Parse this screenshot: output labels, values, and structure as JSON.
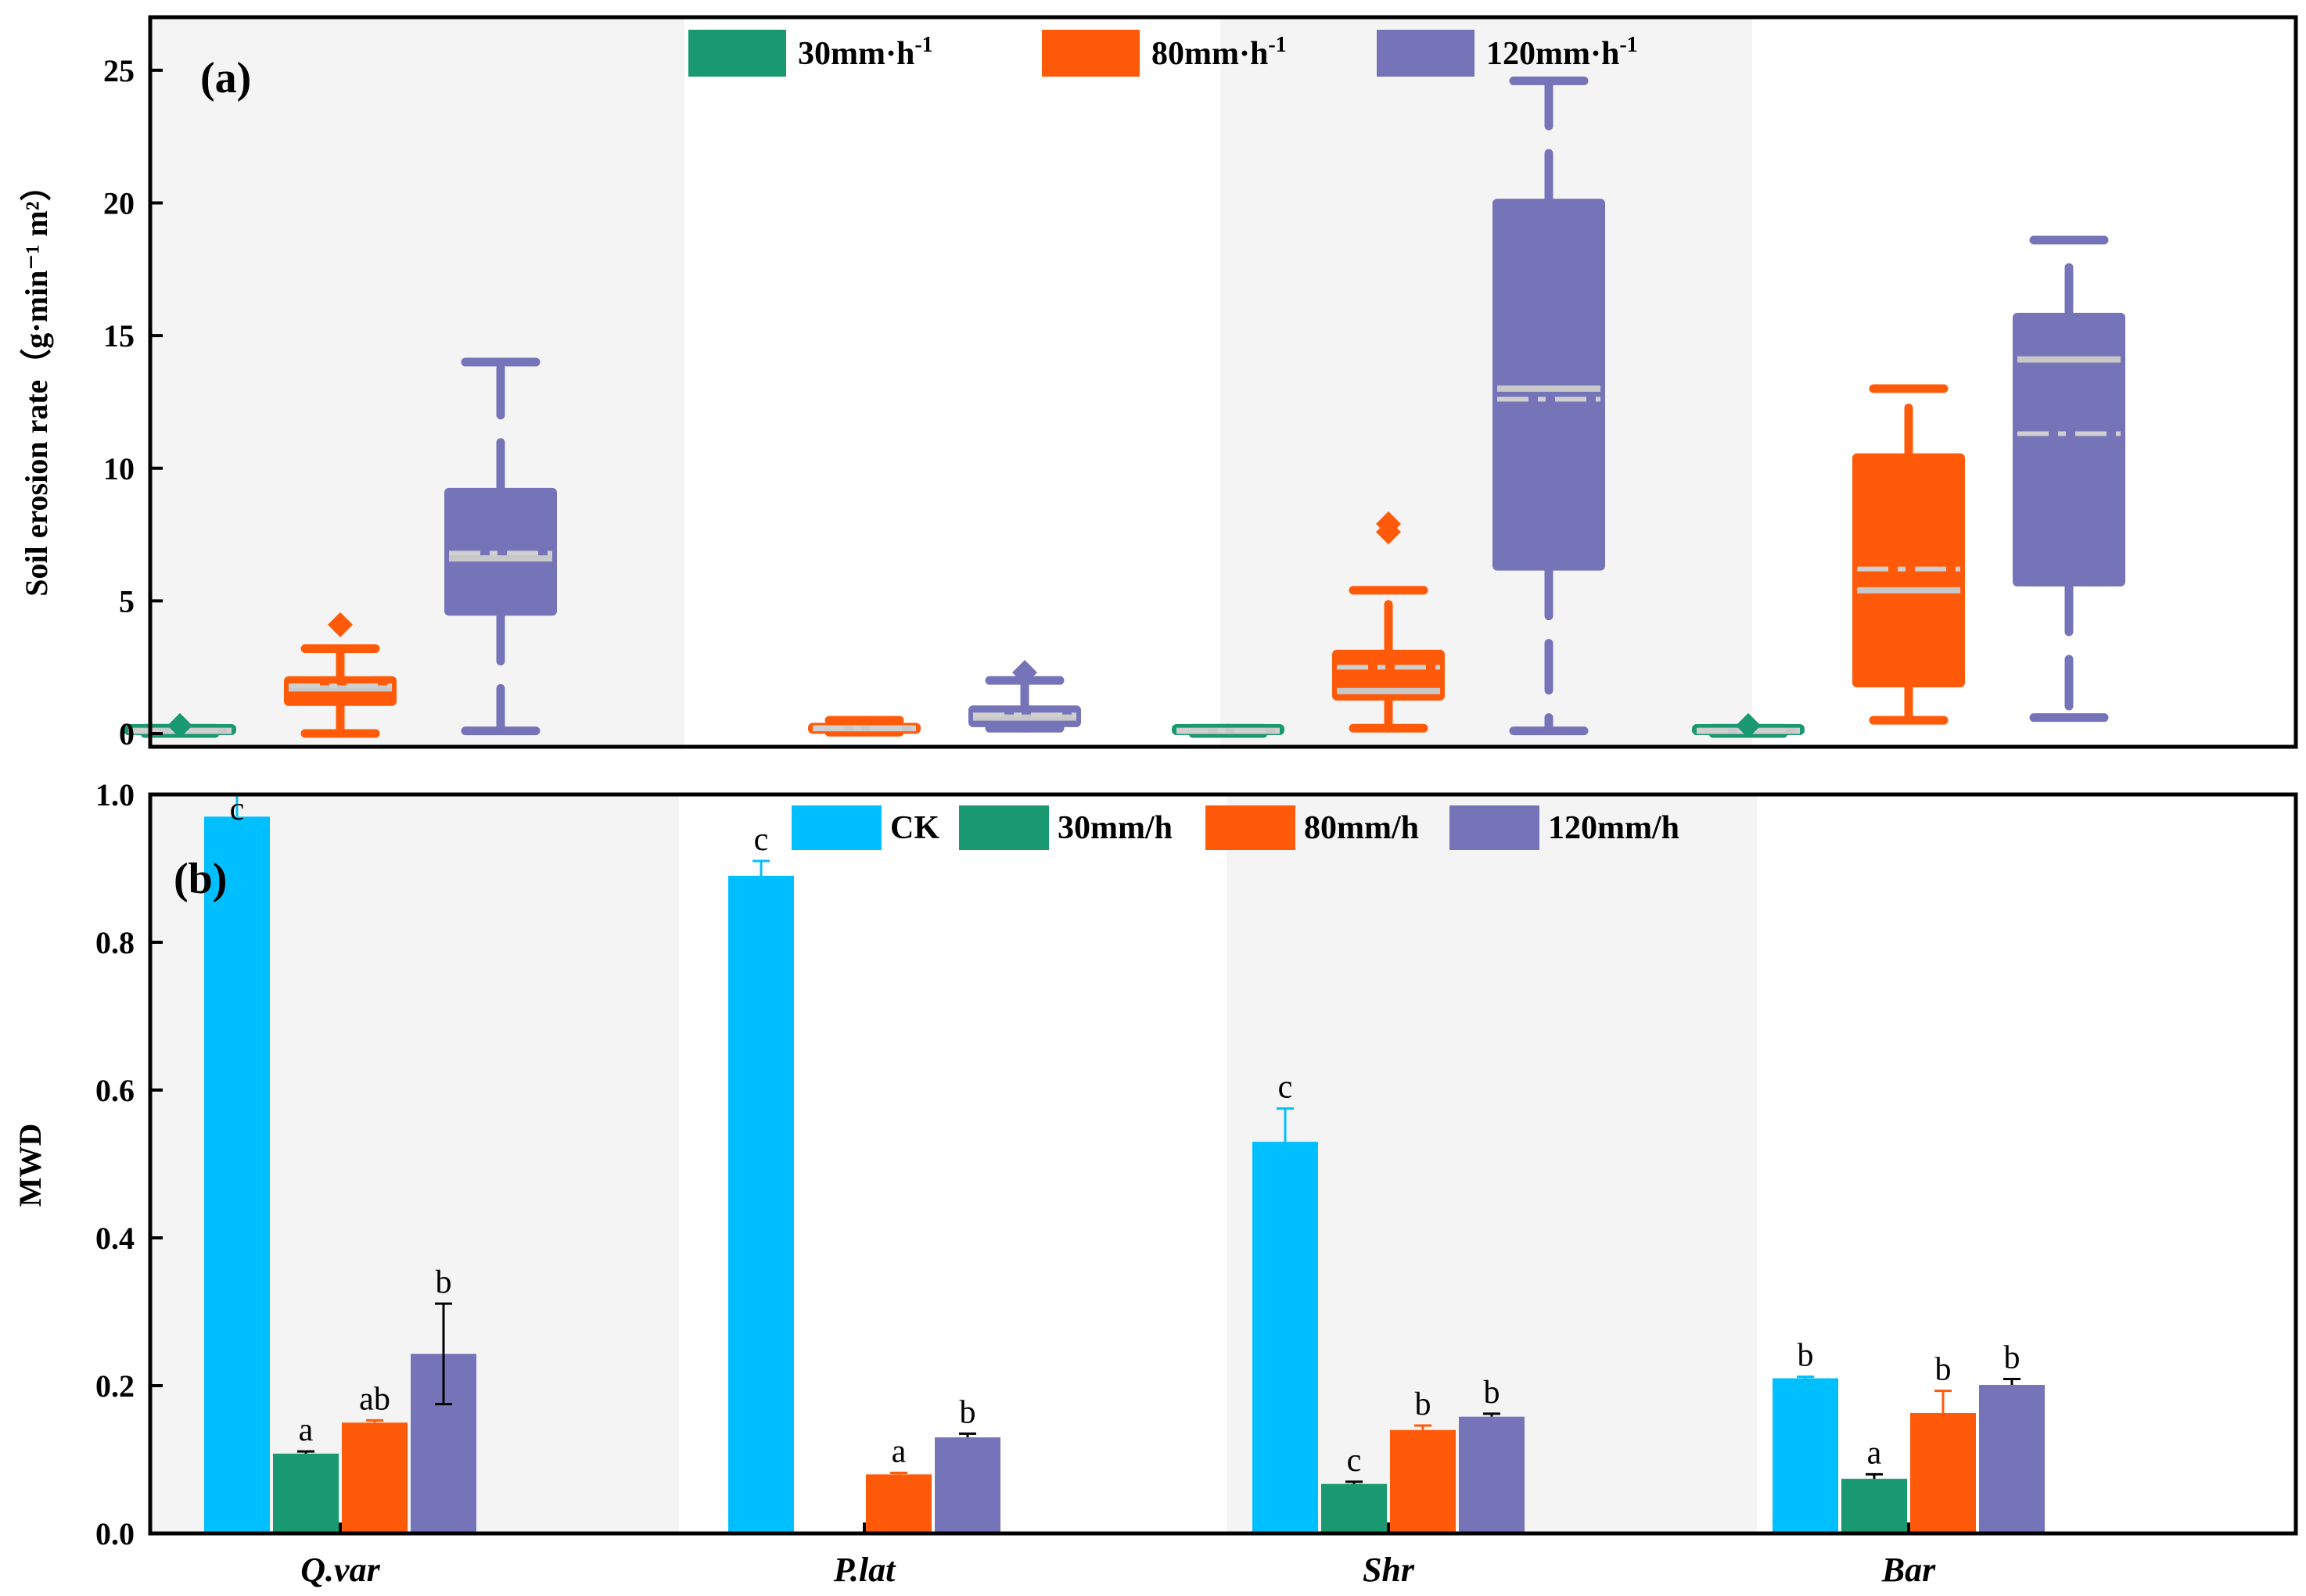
{
  "chart_data": [
    {
      "type": "box",
      "panel_label": "(a)",
      "ylabel": "Soil erosion rate（g·min⁻¹ m²）",
      "ylim": [
        -0.5,
        27
      ],
      "yticks": [
        0,
        5,
        10,
        15,
        20,
        25
      ],
      "categories": [
        "Q.var",
        "P.lat",
        "Shr",
        "Bar"
      ],
      "legend": [
        {
          "label": "30mm·h⁻¹",
          "color": "#1a9970"
        },
        {
          "label": "80mm·h⁻¹",
          "color": "#ff5a0a"
        },
        {
          "label": "120mm·h⁻¹",
          "color": "#7674b8"
        }
      ],
      "series": [
        {
          "name": "30mm·h⁻¹",
          "boxes": [
            {
              "category": "Q.var",
              "min": 0.0,
              "q1": 0.0,
              "median": 0.1,
              "mean": 0.1,
              "q3": 0.2,
              "max": 0.2,
              "outliers": [
                0.3
              ]
            },
            null,
            {
              "category": "Shr",
              "min": 0.0,
              "q1": 0.0,
              "median": 0.1,
              "mean": 0.1,
              "q3": 0.15,
              "max": 0.2,
              "outliers": []
            },
            {
              "category": "Bar",
              "min": 0.0,
              "q1": 0.0,
              "median": 0.1,
              "mean": 0.1,
              "q3": 0.15,
              "max": 0.2,
              "outliers": [
                0.3
              ]
            }
          ]
        },
        {
          "name": "80mm·h⁻¹",
          "boxes": [
            {
              "category": "Q.var",
              "min": 0.0,
              "q1": 1.1,
              "median": 1.7,
              "mean": 1.8,
              "q3": 2.1,
              "max": 3.2,
              "outliers": [
                4.1
              ]
            },
            {
              "category": "P.lat",
              "min": 0.05,
              "q1": 0.05,
              "median": 0.2,
              "mean": 0.2,
              "q3": 0.3,
              "max": 0.5,
              "outliers": []
            },
            {
              "category": "Shr",
              "min": 0.2,
              "q1": 1.3,
              "median": 1.6,
              "mean": 2.5,
              "q3": 3.1,
              "max": 5.4,
              "outliers": [
                7.6,
                7.9
              ]
            },
            {
              "category": "Bar",
              "min": 0.5,
              "q1": 1.8,
              "median": 5.4,
              "mean": 6.2,
              "q3": 10.5,
              "max": 13.0,
              "outliers": []
            }
          ]
        },
        {
          "name": "120mm·h⁻¹",
          "boxes": [
            {
              "category": "Q.var",
              "min": 0.1,
              "q1": 4.5,
              "median": 6.6,
              "mean": 6.8,
              "q3": 9.2,
              "max": 14.0,
              "outliers": []
            },
            {
              "category": "P.lat",
              "min": 0.2,
              "q1": 0.3,
              "median": 0.6,
              "mean": 0.7,
              "q3": 1.0,
              "max": 2.0,
              "outliers": [
                2.3
              ]
            },
            {
              "category": "Shr",
              "min": 0.1,
              "q1": 6.2,
              "median": 13.0,
              "mean": 12.6,
              "q3": 20.1,
              "max": 24.6,
              "outliers": []
            },
            {
              "category": "Bar",
              "min": 0.6,
              "q1": 5.6,
              "median": 14.1,
              "mean": 11.3,
              "q3": 15.8,
              "max": 18.6,
              "outliers": []
            }
          ]
        }
      ]
    },
    {
      "type": "bar",
      "panel_label": "(b)",
      "ylabel": "MWD",
      "ylim": [
        0,
        1.0
      ],
      "yticks": [
        0.0,
        0.2,
        0.4,
        0.6,
        0.8,
        1.0
      ],
      "categories": [
        "Q.var",
        "P.lat",
        "Shr",
        "Bar"
      ],
      "legend": [
        {
          "label": "CK",
          "color": "#00bfff"
        },
        {
          "label": "30mm/h",
          "color": "#1a9970"
        },
        {
          "label": "80mm/h",
          "color": "#ff5a0a"
        },
        {
          "label": "120mm/h",
          "color": "#7674b8"
        }
      ],
      "series": [
        {
          "name": "CK",
          "values": [
            0.97,
            0.89,
            0.53,
            0.21
          ],
          "errors": [
            0.03,
            0.02,
            0.045,
            0.002
          ],
          "letters": [
            "c",
            "c",
            "c",
            "b"
          ]
        },
        {
          "name": "30mm/h",
          "values": [
            0.108,
            null,
            0.067,
            0.074
          ],
          "errors": [
            0.003,
            null,
            0.003,
            0.006
          ],
          "letters": [
            "a",
            null,
            "c",
            "a"
          ]
        },
        {
          "name": "80mm/h",
          "values": [
            0.15,
            0.08,
            0.14,
            0.163
          ],
          "errors": [
            0.003,
            0.002,
            0.006,
            0.03
          ],
          "letters": [
            "ab",
            "a",
            "b",
            "b"
          ]
        },
        {
          "name": "120mm/h",
          "values": [
            0.243,
            0.13,
            0.158,
            0.201
          ],
          "errors": [
            0.068,
            0.005,
            0.004,
            0.008
          ],
          "letters": [
            "b",
            "b",
            "b",
            "b"
          ]
        }
      ]
    }
  ]
}
